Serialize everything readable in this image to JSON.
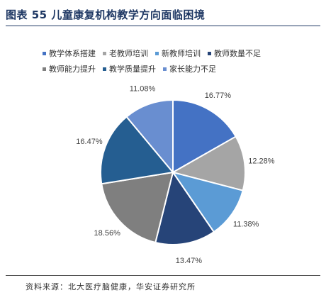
{
  "header": {
    "title": "图表 55  儿童康复机构教学方向面临困境"
  },
  "chart_data": {
    "type": "pie",
    "categories": [
      "教学体系搭建",
      "老教师培训",
      "新教师培训",
      "教师数量不足",
      "教师能力提升",
      "教学质量提升",
      "家长能力不足"
    ],
    "values": [
      16.77,
      12.28,
      11.38,
      13.47,
      18.56,
      16.47,
      11.08
    ],
    "labels": [
      "16.77%",
      "12.28%",
      "11.38%",
      "13.47%",
      "18.56%",
      "16.47%",
      "11.08%"
    ],
    "colors": [
      "#4472c4",
      "#a5a5a5",
      "#5b9bd5",
      "#264478",
      "#7f7f7f",
      "#255e91",
      "#698ed0"
    ],
    "legend_position": "top",
    "start": "12 o'clock, clockwise"
  },
  "footer": {
    "source": "资料来源：北大医疗脑健康，华安证券研究所"
  }
}
